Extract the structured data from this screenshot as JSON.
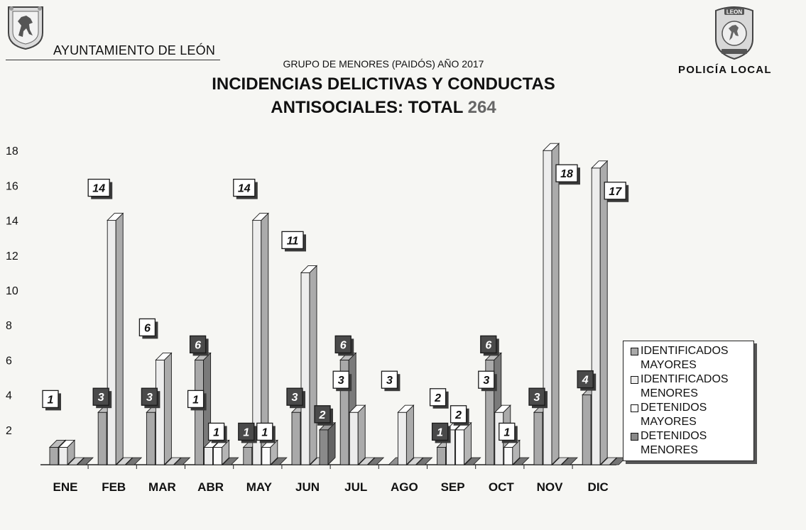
{
  "header": {
    "org_name": "AYUNTAMIENTO DE LEÓN",
    "police_name": "POLICÍA LOCAL",
    "badge_text": "LEON"
  },
  "chart_data": {
    "type": "bar",
    "subtitle": "GRUPO DE MENORES (PAIDÓS) AÑO 2017",
    "title_line1": "INCIDENCIAS DELICTIVAS Y CONDUCTAS",
    "title_line2": "ANTISOCIALES: TOTAL",
    "total": "264",
    "categories": [
      "ENE",
      "FEB",
      "MAR",
      "ABR",
      "MAY",
      "JUN",
      "JUL",
      "AGO",
      "SEP",
      "OCT",
      "NOV",
      "DIC"
    ],
    "y_ticks": [
      "2",
      "4",
      "6",
      "8",
      "10",
      "12",
      "14",
      "16",
      "18"
    ],
    "ylim": [
      0,
      18
    ],
    "grid": false,
    "legend_position": "right",
    "series": [
      {
        "name": "IDENTIFICADOS MAYORES",
        "color": "#a9a9a9",
        "values": [
          1,
          3,
          3,
          6,
          1,
          3,
          6,
          0,
          1,
          6,
          3,
          4
        ]
      },
      {
        "name": "IDENTIFICADOS MENORES",
        "color": "#ededed",
        "values": [
          1,
          14,
          6,
          1,
          14,
          11,
          3,
          3,
          2,
          3,
          18,
          17
        ]
      },
      {
        "name": "DETENIDOS MAYORES",
        "color": "#fbfbfb",
        "values": [
          0,
          0,
          0,
          1,
          1,
          0,
          0,
          0,
          2,
          1,
          0,
          0
        ]
      },
      {
        "name": "DETENIDOS MENORES",
        "color": "#8a8a8a",
        "values": [
          0,
          0,
          0,
          0,
          0,
          2,
          0,
          0,
          0,
          0,
          0,
          0
        ]
      }
    ],
    "data_labels": [
      {
        "month": "ENE",
        "series": 1,
        "text": "1",
        "style": "light"
      },
      {
        "month": "FEB",
        "series": 0,
        "text": "3",
        "style": "dark"
      },
      {
        "month": "FEB",
        "series": 1,
        "text": "14",
        "style": "light"
      },
      {
        "month": "MAR",
        "series": 0,
        "text": "3",
        "style": "dark"
      },
      {
        "month": "MAR",
        "series": 1,
        "text": "6",
        "style": "light"
      },
      {
        "month": "ABR",
        "series": 0,
        "text": "6",
        "style": "dark"
      },
      {
        "month": "ABR",
        "series": 1,
        "text": "1",
        "style": "light"
      },
      {
        "month": "ABR",
        "series": 2,
        "text": "1",
        "style": "light"
      },
      {
        "month": "MAY",
        "series": 0,
        "text": "1",
        "style": "dark"
      },
      {
        "month": "MAY",
        "series": 1,
        "text": "14",
        "style": "light"
      },
      {
        "month": "MAY",
        "series": 2,
        "text": "1",
        "style": "light"
      },
      {
        "month": "JUN",
        "series": 0,
        "text": "3",
        "style": "dark"
      },
      {
        "month": "JUN",
        "series": 1,
        "text": "11",
        "style": "light"
      },
      {
        "month": "JUN",
        "series": 3,
        "text": "2",
        "style": "dark"
      },
      {
        "month": "JUL",
        "series": 0,
        "text": "6",
        "style": "dark"
      },
      {
        "month": "JUL",
        "series": 1,
        "text": "3",
        "style": "light"
      },
      {
        "month": "AGO",
        "series": 1,
        "text": "3",
        "style": "light"
      },
      {
        "month": "SEP",
        "series": 0,
        "text": "1",
        "style": "dark"
      },
      {
        "month": "SEP",
        "series": 1,
        "text": "2",
        "style": "light"
      },
      {
        "month": "SEP",
        "series": 2,
        "text": "2",
        "style": "light"
      },
      {
        "month": "OCT",
        "series": 0,
        "text": "6",
        "style": "dark"
      },
      {
        "month": "OCT",
        "series": 1,
        "text": "3",
        "style": "light"
      },
      {
        "month": "OCT",
        "series": 2,
        "text": "1",
        "style": "light"
      },
      {
        "month": "NOV",
        "series": 0,
        "text": "3",
        "style": "dark"
      },
      {
        "month": "NOV",
        "series": 1,
        "text": "18",
        "style": "light"
      },
      {
        "month": "DIC",
        "series": 0,
        "text": "4",
        "style": "dark"
      },
      {
        "month": "DIC",
        "series": 1,
        "text": "17",
        "style": "light"
      }
    ]
  }
}
